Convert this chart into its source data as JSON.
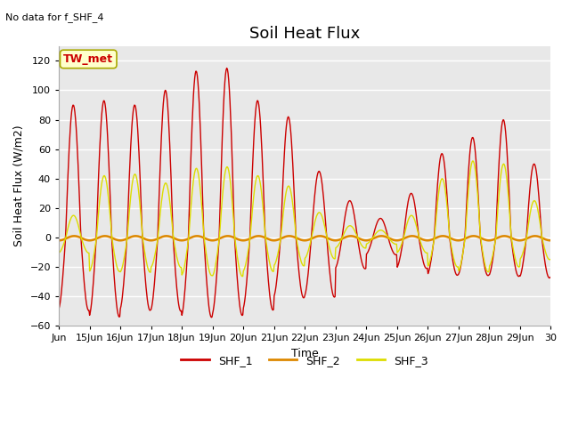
{
  "title": "Soil Heat Flux",
  "subtitle": "No data for f_SHF_4",
  "xlabel": "Time",
  "ylabel": "Soil Heat Flux (W/m2)",
  "annotation": "TW_met",
  "xlim_days": [
    14.0,
    30.0
  ],
  "ylim": [
    -60,
    130
  ],
  "yticks": [
    -60,
    -40,
    -20,
    0,
    20,
    40,
    60,
    80,
    100,
    120
  ],
  "xtick_labels": [
    "Jun",
    "15Jun",
    "16Jun",
    "17Jun",
    "18Jun",
    "19Jun",
    "20Jun",
    "21Jun",
    "22Jun",
    "23Jun",
    "24Jun",
    "25Jun",
    "26Jun",
    "27Jun",
    "28Jun",
    "29Jun",
    "30"
  ],
  "xtick_positions": [
    14,
    15,
    16,
    17,
    18,
    19,
    20,
    21,
    22,
    23,
    24,
    25,
    26,
    27,
    28,
    29,
    30
  ],
  "color_shf1": "#cc0000",
  "color_shf2": "#dd8800",
  "color_shf3": "#dddd00",
  "background_color": "#e8e8e8",
  "legend_labels": [
    "SHF_1",
    "SHF_2",
    "SHF_3"
  ],
  "title_fontsize": 13,
  "axis_fontsize": 9,
  "tick_fontsize": 8,
  "figsize": [
    6.4,
    4.8
  ],
  "dpi": 100
}
